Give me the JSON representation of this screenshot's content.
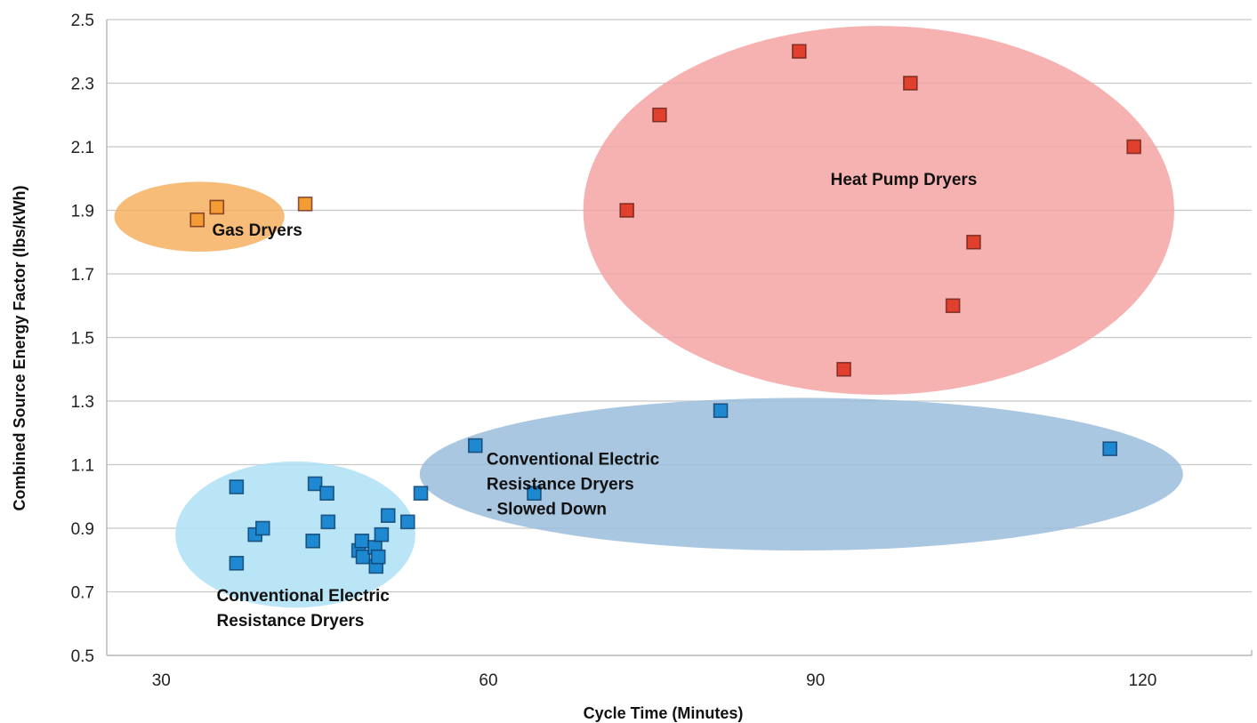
{
  "chart_data": {
    "type": "scatter",
    "title": "",
    "xlabel": "Cycle Time (Minutes)",
    "ylabel": "Combined Source Energy Factor (lbs/kWh)",
    "xlim": [
      25,
      130
    ],
    "ylim": [
      0.5,
      2.5
    ],
    "xticks": [
      30,
      60,
      90,
      120
    ],
    "xtick_labels": [
      "30",
      "60",
      "90",
      "120"
    ],
    "yticks": [
      0.5,
      0.7,
      0.9,
      1.1,
      1.3,
      1.5,
      1.7,
      1.9,
      2.1,
      2.3,
      2.5
    ],
    "ytick_labels": [
      "0.5",
      "0.7",
      "0.9",
      "1.1",
      "1.3",
      "1.5",
      "1.7",
      "1.9",
      "2.1",
      "2.3",
      "2.5"
    ],
    "grid": "horizontal",
    "legend": "none",
    "series": [
      {
        "name": "Gas Dryers",
        "color": "#f39c33",
        "ellipse_color": "#f5b060",
        "ellipse_center": [
          33.5,
          1.88
        ],
        "ellipse_radii": [
          7.8,
          0.11
        ],
        "label_anchor": [
          38.8,
          1.82
        ],
        "label_lines": [
          "Gas Dryers"
        ],
        "x": [
          33.3,
          35.1,
          43.2
        ],
        "y": [
          1.87,
          1.91,
          1.92
        ]
      },
      {
        "name": "Heat Pump Dryers",
        "color": "#e2402e",
        "ellipse_color": "#f4a3a3",
        "ellipse_center": [
          95.8,
          1.9
        ],
        "ellipse_radii": [
          27.1,
          0.58
        ],
        "label_anchor": [
          98.1,
          1.98
        ],
        "label_lines": [
          "Heat Pump Dryers"
        ],
        "x": [
          72.7,
          75.7,
          88.5,
          92.6,
          98.7,
          102.6,
          104.5,
          119.2
        ],
        "y": [
          1.9,
          2.2,
          2.4,
          1.4,
          2.3,
          1.6,
          1.8,
          2.1
        ]
      },
      {
        "name": "Conventional Electric Resistance Dryers - Slowed Down",
        "color": "#1e88d0",
        "ellipse_color": "#9bbddc",
        "ellipse_center": [
          88.7,
          1.07
        ],
        "ellipse_radii": [
          35.0,
          0.24
        ],
        "label_anchor": [
          69.7,
          1.1
        ],
        "label_lines": [
          "Conventional Electric",
          "Resistance Dryers",
          "- Slowed Down"
        ],
        "x": [
          53.8,
          58.8,
          64.2,
          81.3,
          117.0
        ],
        "y": [
          1.01,
          1.16,
          1.01,
          1.27,
          1.15
        ]
      },
      {
        "name": "Conventional Electric Resistance Dryers",
        "color": "#1e88d0",
        "ellipse_color": "#aee0f6",
        "ellipse_center": [
          42.3,
          0.88
        ],
        "ellipse_radii": [
          11.0,
          0.23
        ],
        "label_anchor": [
          43.4,
          0.67
        ],
        "label_lines": [
          "Conventional Electric",
          "Resistance Dryers"
        ],
        "x": [
          36.9,
          36.9,
          38.6,
          39.3,
          43.9,
          44.1,
          45.2,
          45.3,
          48.1,
          48.4,
          48.5,
          49.6,
          49.7,
          49.9,
          50.2,
          50.8,
          52.6
        ],
        "y": [
          1.03,
          0.79,
          0.88,
          0.9,
          0.86,
          1.04,
          1.01,
          0.92,
          0.83,
          0.86,
          0.81,
          0.84,
          0.78,
          0.81,
          0.88,
          0.94,
          0.92
        ]
      }
    ]
  }
}
